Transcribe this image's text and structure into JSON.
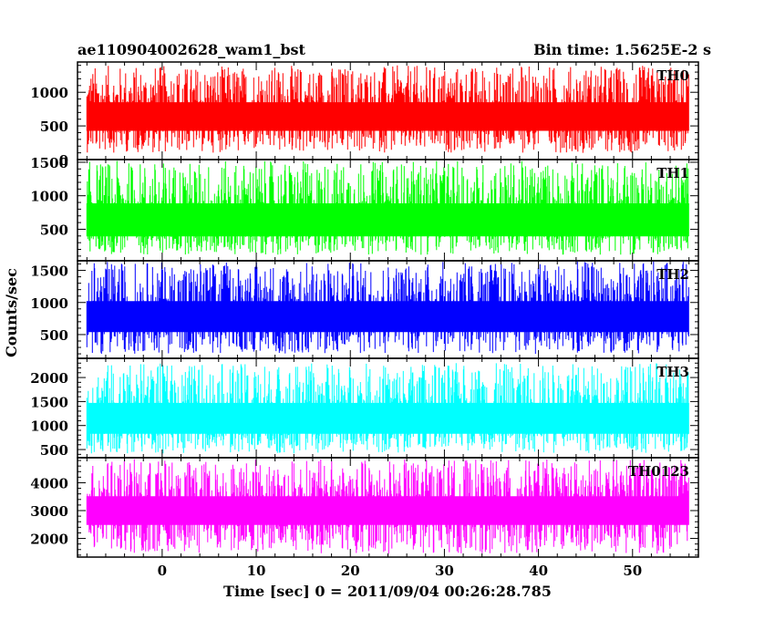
{
  "header": {
    "title": "ae110904002628_wam1_bst",
    "bin_time": "Bin time: 1.5625E-2 s"
  },
  "chart_data": {
    "type": "line",
    "xlabel": "Time [sec] 0 = 2011/09/04 00:26:28.785",
    "ylabel": "Counts/sec",
    "xlim": [
      -9,
      57
    ],
    "data_x_range": [
      -8,
      56
    ],
    "x_ticks": [
      0,
      10,
      20,
      30,
      40,
      50
    ],
    "x_tick_labels": [
      "0",
      "10",
      "20",
      "30",
      "40",
      "50"
    ],
    "grid": false,
    "panels": [
      {
        "name": "TH0",
        "color": "#ff0000",
        "ylim": [
          0,
          1450
        ],
        "y_ticks": [
          0,
          500,
          1000
        ],
        "y_tick_labels": [
          "0",
          "500",
          "1000"
        ],
        "mean": 640,
        "min": 100,
        "max": 1400
      },
      {
        "name": "TH1",
        "color": "#00ff00",
        "ylim": [
          30,
          1540
        ],
        "y_ticks": [
          500,
          1000,
          1500
        ],
        "y_tick_labels": [
          "500",
          "1000",
          "1500"
        ],
        "mean": 640,
        "min": 120,
        "max": 1520
      },
      {
        "name": "TH2",
        "color": "#0000ff",
        "ylim": [
          130,
          1650
        ],
        "y_ticks": [
          500,
          1000,
          1500
        ],
        "y_tick_labels": [
          "500",
          "1000",
          "1500"
        ],
        "mean": 780,
        "min": 200,
        "max": 1640
      },
      {
        "name": "TH3",
        "color": "#00ffff",
        "ylim": [
          330,
          2400
        ],
        "y_ticks": [
          500,
          1000,
          1500,
          2000
        ],
        "y_tick_labels": [
          "500",
          "1000",
          "1500",
          "2000"
        ],
        "mean": 1150,
        "min": 420,
        "max": 2300
      },
      {
        "name": "TH0123",
        "color": "#ff00ff",
        "ylim": [
          1330,
          4900
        ],
        "y_ticks": [
          2000,
          3000,
          4000
        ],
        "y_tick_labels": [
          "2000",
          "3000",
          "4000"
        ],
        "mean": 3000,
        "min": 1450,
        "max": 4850
      }
    ]
  }
}
